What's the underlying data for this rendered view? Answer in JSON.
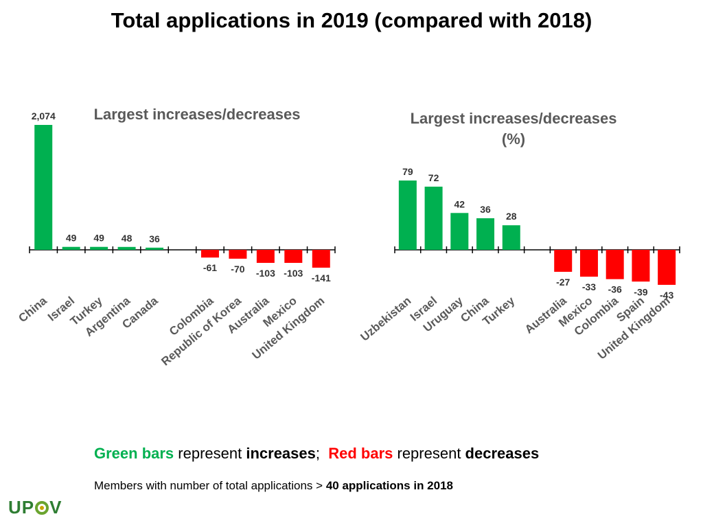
{
  "title": "Total applications in 2019 (compared with 2018)",
  "colors": {
    "increase": "#00b050",
    "decrease": "#ff0000",
    "axis": "#000000"
  },
  "legend": {
    "green_label": "Green bars",
    "text1": " represent ",
    "increases": "increases",
    "sep": ";  ",
    "red_label": "Red bars",
    "text2": " represent ",
    "decreases": "decreases"
  },
  "footnote": {
    "prefix": "Members with number of total applications > ",
    "bold": "40 applications in 2018"
  },
  "logo": {
    "left": "UP",
    "right": "V",
    "mark_icon": "upov-leaf-icon"
  },
  "chart_data": [
    {
      "type": "bar",
      "title": "Largest increases/decreases",
      "categories": [
        "China",
        "Israel",
        "Turkey",
        "Argentina",
        "Canada",
        "",
        "Colombia",
        "Republic of Korea",
        "Australia",
        "Mexico",
        "United Kingdom"
      ],
      "values": [
        2074,
        49,
        49,
        48,
        36,
        null,
        -61,
        -70,
        -103,
        -103,
        -141
      ],
      "value_labels": [
        "2,074",
        "49",
        "49",
        "48",
        "36",
        "",
        "-61",
        "-70",
        "-103",
        "-103",
        "-141"
      ],
      "ylim": [
        -141,
        2074
      ],
      "xlabel": "",
      "ylabel": ""
    },
    {
      "type": "bar",
      "title": "Largest increases/decreases (%)",
      "title_lines": [
        "Largest increases/decreases",
        "(%)"
      ],
      "categories": [
        "Uzbekistan",
        "Israel",
        "Uruguay",
        "China",
        "Turkey",
        "",
        "Australia",
        "Mexico",
        "Colombia",
        "Spain",
        "United Kingdom"
      ],
      "values": [
        79,
        72,
        42,
        36,
        28,
        null,
        -27,
        -33,
        -36,
        -39,
        -43
      ],
      "value_labels": [
        "79",
        "72",
        "42",
        "36",
        "28",
        "",
        "-27",
        "-33",
        "-36",
        "-39",
        "-43"
      ],
      "ylim": [
        -43,
        79
      ],
      "xlabel": "",
      "ylabel": ""
    }
  ]
}
